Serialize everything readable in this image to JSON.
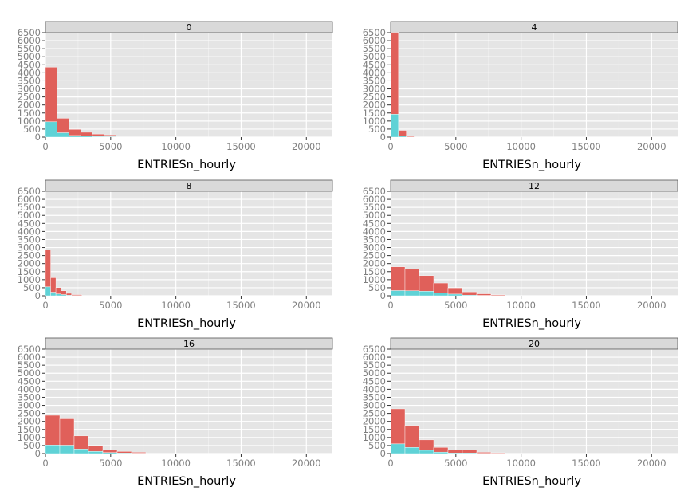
{
  "chart_data": {
    "type": "bar",
    "layout": "faceted-histogram",
    "xlabel": "ENTRIESn_hourly",
    "ylabel": "",
    "xlim": [
      0,
      22000
    ],
    "ylim": [
      0,
      6500
    ],
    "x_ticks": [
      0,
      5000,
      10000,
      15000,
      20000
    ],
    "y_ticks": [
      0,
      500,
      1000,
      1500,
      2000,
      2500,
      3000,
      3500,
      4000,
      4500,
      5000,
      5500,
      6000,
      6500
    ],
    "grid": true,
    "legend": "none",
    "stacked": true,
    "colors": {
      "series_a": "#e0605a",
      "series_b": "#5fd2d6",
      "panel": "#e5e5e5",
      "strip": "#d9d9d9",
      "grid": "#ffffff"
    },
    "facets": [
      {
        "label": "0",
        "bins": [
          {
            "x0": 0,
            "x1": 900,
            "a": 3400,
            "b": 950
          },
          {
            "x0": 900,
            "x1": 1800,
            "a": 900,
            "b": 270
          },
          {
            "x0": 1800,
            "x1": 2700,
            "a": 380,
            "b": 100
          },
          {
            "x0": 2700,
            "x1": 3600,
            "a": 230,
            "b": 70
          },
          {
            "x0": 3600,
            "x1": 4500,
            "a": 150,
            "b": 40
          },
          {
            "x0": 4500,
            "x1": 5400,
            "a": 110,
            "b": 30
          }
        ]
      },
      {
        "label": "4",
        "bins": [
          {
            "x0": 0,
            "x1": 600,
            "a": 5100,
            "b": 1420
          },
          {
            "x0": 600,
            "x1": 1200,
            "a": 350,
            "b": 70
          },
          {
            "x0": 1200,
            "x1": 1800,
            "a": 80,
            "b": 10
          }
        ]
      },
      {
        "label": "8",
        "bins": [
          {
            "x0": 0,
            "x1": 400,
            "a": 2300,
            "b": 550
          },
          {
            "x0": 400,
            "x1": 800,
            "a": 900,
            "b": 220
          },
          {
            "x0": 800,
            "x1": 1200,
            "a": 400,
            "b": 110
          },
          {
            "x0": 1200,
            "x1": 1600,
            "a": 240,
            "b": 70
          },
          {
            "x0": 1600,
            "x1": 2000,
            "a": 120,
            "b": 30
          },
          {
            "x0": 2000,
            "x1": 2800,
            "a": 60,
            "b": 10
          }
        ]
      },
      {
        "label": "12",
        "bins": [
          {
            "x0": 0,
            "x1": 1100,
            "a": 1480,
            "b": 320
          },
          {
            "x0": 1100,
            "x1": 2200,
            "a": 1340,
            "b": 310
          },
          {
            "x0": 2200,
            "x1": 3300,
            "a": 970,
            "b": 280
          },
          {
            "x0": 3300,
            "x1": 4400,
            "a": 620,
            "b": 170
          },
          {
            "x0": 4400,
            "x1": 5500,
            "a": 390,
            "b": 100
          },
          {
            "x0": 5500,
            "x1": 6600,
            "a": 200,
            "b": 40
          },
          {
            "x0": 6600,
            "x1": 7700,
            "a": 100,
            "b": 20
          },
          {
            "x0": 7700,
            "x1": 8800,
            "a": 50,
            "b": 10
          }
        ]
      },
      {
        "label": "16",
        "bins": [
          {
            "x0": 0,
            "x1": 1100,
            "a": 1850,
            "b": 530
          },
          {
            "x0": 1100,
            "x1": 2200,
            "a": 1640,
            "b": 520
          },
          {
            "x0": 2200,
            "x1": 3300,
            "a": 820,
            "b": 280
          },
          {
            "x0": 3300,
            "x1": 4400,
            "a": 350,
            "b": 130
          },
          {
            "x0": 4400,
            "x1": 5500,
            "a": 180,
            "b": 60
          },
          {
            "x0": 5500,
            "x1": 6600,
            "a": 100,
            "b": 30
          },
          {
            "x0": 6600,
            "x1": 7700,
            "a": 60,
            "b": 20
          }
        ]
      },
      {
        "label": "20",
        "bins": [
          {
            "x0": 0,
            "x1": 1100,
            "a": 2180,
            "b": 600
          },
          {
            "x0": 1100,
            "x1": 2200,
            "a": 1370,
            "b": 380
          },
          {
            "x0": 2200,
            "x1": 3300,
            "a": 650,
            "b": 200
          },
          {
            "x0": 3300,
            "x1": 4400,
            "a": 290,
            "b": 90
          },
          {
            "x0": 4400,
            "x1": 5500,
            "a": 180,
            "b": 40
          },
          {
            "x0": 5500,
            "x1": 6600,
            "a": 170,
            "b": 40
          },
          {
            "x0": 6600,
            "x1": 7700,
            "a": 70,
            "b": 10
          },
          {
            "x0": 7700,
            "x1": 8800,
            "a": 40,
            "b": 10
          }
        ]
      }
    ]
  }
}
